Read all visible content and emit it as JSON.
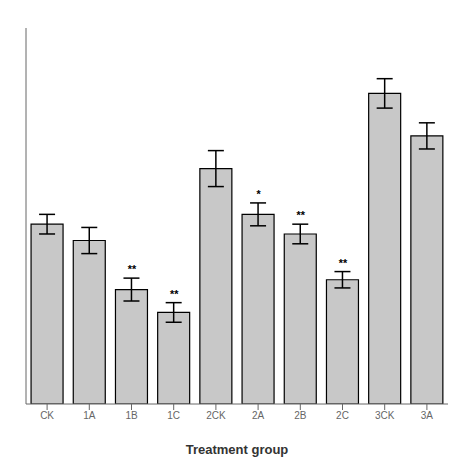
{
  "chart_data": {
    "type": "bar",
    "categories": [
      "CK",
      "1A",
      "1B",
      "1C",
      "2CK",
      "2A",
      "2B",
      "2C",
      "3CK",
      "3A"
    ],
    "values": [
      5.5,
      5.0,
      3.5,
      2.8,
      7.2,
      5.8,
      5.2,
      3.8,
      9.5,
      8.2
    ],
    "errors": [
      0.3,
      0.4,
      0.35,
      0.3,
      0.55,
      0.35,
      0.3,
      0.25,
      0.45,
      0.4
    ],
    "annotations": [
      {
        "category": "1B",
        "text": "**"
      },
      {
        "category": "1C",
        "text": "**"
      },
      {
        "category": "2A",
        "text": "*"
      },
      {
        "category": "2B",
        "text": "**"
      },
      {
        "category": "2C",
        "text": "**"
      }
    ],
    "color": "#c8c8c8",
    "xlabel": "Treatment group",
    "ylim": [
      0,
      11.5
    ],
    "yticks": [],
    "tick_labels": "x",
    "grid": false
  }
}
